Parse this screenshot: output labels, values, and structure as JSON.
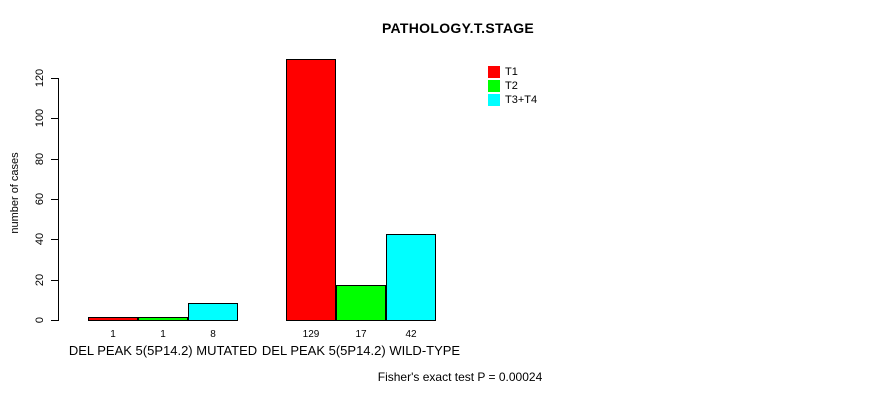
{
  "title": "PATHOLOGY.T.STAGE",
  "y_axis": {
    "label": "number of cases",
    "ticks": [
      0,
      20,
      40,
      60,
      80,
      100,
      120
    ]
  },
  "legend": [
    {
      "label": "T1",
      "color": "#ff0000"
    },
    {
      "label": "T2",
      "color": "#00ff00"
    },
    {
      "label": "T3+T4",
      "color": "#00ffff"
    }
  ],
  "footer": "Fisher's exact test P = 0.00024",
  "chart_data": {
    "type": "bar",
    "title": "PATHOLOGY.T.STAGE",
    "xlabel": "",
    "ylabel": "number of cases",
    "ylim": [
      0,
      130
    ],
    "yticks": [
      0,
      20,
      40,
      60,
      80,
      100,
      120
    ],
    "grid": false,
    "legend_position": "top-right",
    "categories": [
      "DEL PEAK 5(5P14.2) MUTATED",
      "DEL PEAK 5(5P14.2) WILD-TYPE"
    ],
    "series": [
      {
        "name": "T1",
        "color": "#ff0000",
        "values": [
          1,
          129
        ]
      },
      {
        "name": "T2",
        "color": "#00ff00",
        "values": [
          1,
          17
        ]
      },
      {
        "name": "T3+T4",
        "color": "#00ffff",
        "values": [
          8,
          42
        ]
      }
    ],
    "annotation": "Fisher's exact test P = 0.00024"
  }
}
